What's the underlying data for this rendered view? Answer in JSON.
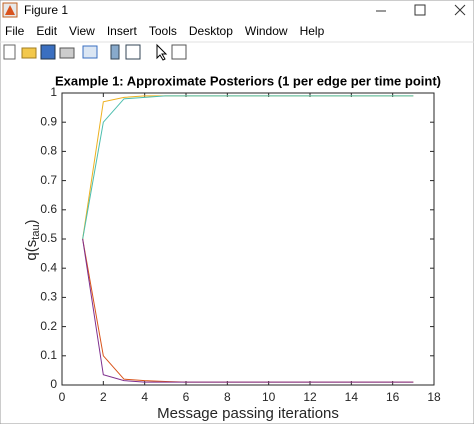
{
  "window": {
    "title": "Figure 1",
    "menu": [
      "File",
      "Edit",
      "View",
      "Insert",
      "Tools",
      "Desktop",
      "Window",
      "Help"
    ]
  },
  "chart_data": {
    "type": "line",
    "title": "Example 1: Approximate Posteriors (1 per edge per time point)",
    "xlabel": "Message passing iterations",
    "ylabel": [
      "q(s",
      "tau",
      ")"
    ],
    "x": [
      1,
      2,
      3,
      4,
      5,
      6,
      7,
      8,
      9,
      10,
      11,
      12,
      13,
      14,
      15,
      16,
      17
    ],
    "series": [
      {
        "color": "#EDB120",
        "values": [
          0.5,
          0.97,
          0.985,
          0.99,
          0.99,
          0.99,
          0.99,
          0.99,
          0.99,
          0.99,
          0.99,
          0.99,
          0.99,
          0.99,
          0.99,
          0.99,
          0.99
        ]
      },
      {
        "color": "#4DBEAE",
        "values": [
          0.5,
          0.9,
          0.98,
          0.985,
          0.99,
          0.99,
          0.99,
          0.99,
          0.99,
          0.99,
          0.99,
          0.99,
          0.99,
          0.99,
          0.99,
          0.99,
          0.99
        ]
      },
      {
        "color": "#D95319",
        "values": [
          0.5,
          0.1,
          0.02,
          0.015,
          0.012,
          0.01,
          0.01,
          0.01,
          0.01,
          0.01,
          0.01,
          0.01,
          0.01,
          0.01,
          0.01,
          0.01,
          0.01
        ]
      },
      {
        "color": "#7E2F8E",
        "values": [
          0.5,
          0.035,
          0.015,
          0.01,
          0.01,
          0.01,
          0.01,
          0.01,
          0.01,
          0.01,
          0.01,
          0.01,
          0.01,
          0.01,
          0.01,
          0.01,
          0.01
        ]
      }
    ],
    "xlim": [
      0,
      18
    ],
    "xticks": [
      0,
      2,
      4,
      6,
      8,
      10,
      12,
      14,
      16,
      18
    ],
    "ylim": [
      0,
      1
    ],
    "yticks": [
      0,
      0.1,
      0.2,
      0.3,
      0.4,
      0.5,
      0.6,
      0.7,
      0.8,
      0.9,
      1
    ],
    "grid": false
  }
}
